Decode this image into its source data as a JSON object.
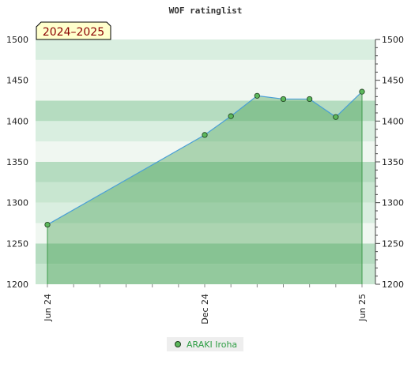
{
  "chart_data": {
    "type": "area",
    "title": "WOF ratinglist",
    "badge": "2024–2025",
    "x_ticks": [
      "Jun 24",
      "Dec 24",
      "Jun 25"
    ],
    "ylim": [
      1200,
      1500
    ],
    "y_ticks": [
      1200,
      1250,
      1300,
      1350,
      1400,
      1450,
      1500
    ],
    "grid": true,
    "legend_position": "bottom-center",
    "series": [
      {
        "name": "ARAKI Iroha",
        "points": [
          {
            "x": "2024-06",
            "y": 1273
          },
          {
            "x": "2024-12",
            "y": 1383
          },
          {
            "x": "2025-01",
            "y": 1406
          },
          {
            "x": "2025-02",
            "y": 1431
          },
          {
            "x": "2025-03",
            "y": 1427
          },
          {
            "x": "2025-04",
            "y": 1427
          },
          {
            "x": "2025-05",
            "y": 1405
          },
          {
            "x": "2025-06",
            "y": 1436
          }
        ]
      }
    ]
  },
  "colors": {
    "line": "#4a9fd6",
    "area_fill": "#3c9a4a",
    "marker_fill": "#5cb85c",
    "marker_stroke": "#1b3b1b",
    "legend_text": "#2e9e44",
    "badge_bg": "#ffffcc",
    "badge_text": "#8b0000"
  }
}
